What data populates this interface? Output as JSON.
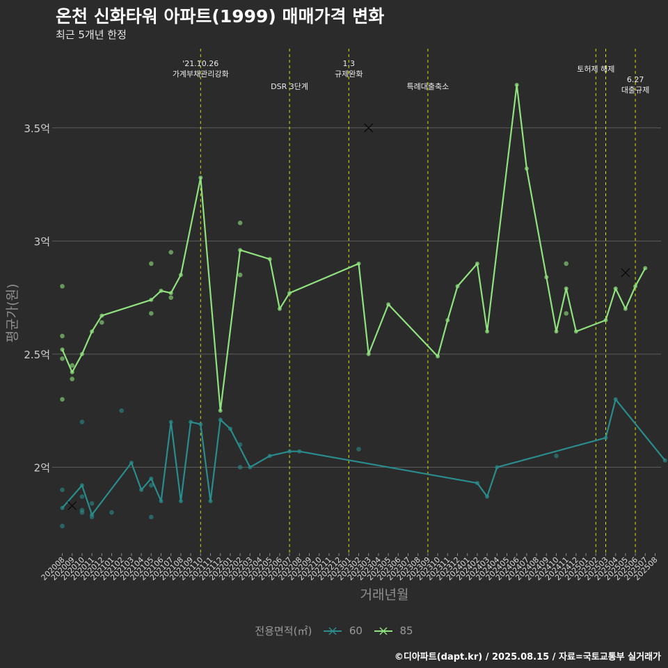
{
  "title": "온천 신화타워 아파트(1999) 매매가격 변화",
  "subtitle": "최근 5개년 한정",
  "caption": "©디아파트(dapt.kr) / 2025.08.15 / 자료=국토교통부 실거래가",
  "legend": {
    "title": "전용면적(㎡)",
    "items": [
      {
        "label": "60",
        "color": "#2a8c8c"
      },
      {
        "label": "85",
        "color": "#90e27f"
      }
    ]
  },
  "chart_data": {
    "type": "line",
    "xlabel": "거래년월",
    "ylabel": "평균가(원)",
    "x_categories": [
      "202008",
      "202009",
      "202010",
      "202011",
      "202012",
      "202101",
      "202102",
      "202103",
      "202104",
      "202105",
      "202106",
      "202107",
      "202108",
      "202109",
      "202110",
      "202111",
      "202112",
      "202201",
      "202202",
      "202203",
      "202204",
      "202205",
      "202206",
      "202207",
      "202208",
      "202209",
      "202210",
      "202211",
      "202212",
      "202301",
      "202302",
      "202303",
      "202304",
      "202305",
      "202306",
      "202307",
      "202308",
      "202309",
      "202310",
      "202311",
      "202312",
      "202401",
      "202402",
      "202403",
      "202404",
      "202405",
      "202406",
      "202407",
      "202408",
      "202409",
      "202410",
      "202411",
      "202412",
      "202501",
      "202502",
      "202503",
      "202504",
      "202505",
      "202506",
      "202507",
      "202508"
    ],
    "y_ticks": [
      {
        "value": 2.0,
        "label": "2억"
      },
      {
        "value": 2.5,
        "label": "2.5억"
      },
      {
        "value": 3.0,
        "label": "3억"
      },
      {
        "value": 3.5,
        "label": "3.5억"
      }
    ],
    "y_range": [
      1.62,
      3.85
    ],
    "unit": "억",
    "series": [
      {
        "name": "60",
        "color": "#2a8c8c",
        "line": [
          [
            "202008",
            1.82
          ],
          [
            "202010",
            1.92
          ],
          [
            "202011",
            1.79
          ],
          [
            "202103",
            2.02
          ],
          [
            "202104",
            1.9
          ],
          [
            "202105",
            1.95
          ],
          [
            "202106",
            1.85
          ],
          [
            "202107",
            2.2
          ],
          [
            "202108",
            1.85
          ],
          [
            "202109",
            2.2
          ],
          [
            "202110",
            2.19
          ],
          [
            "202111",
            1.85
          ],
          [
            "202112",
            2.21
          ],
          [
            "202201",
            2.17
          ],
          [
            "202203",
            2.0
          ],
          [
            "202205",
            2.05
          ],
          [
            "202207",
            2.07
          ],
          [
            "202208",
            2.07
          ],
          [
            "202402",
            1.93
          ],
          [
            "202403",
            1.87
          ],
          [
            "202404",
            2.0
          ],
          [
            "202503",
            2.13
          ],
          [
            "202504",
            2.3
          ],
          [
            "202509",
            2.03
          ]
        ],
        "points": [
          [
            "202008",
            1.9
          ],
          [
            "202008",
            1.74
          ],
          [
            "202010",
            2.2
          ],
          [
            "202010",
            1.87
          ],
          [
            "202010",
            1.81
          ],
          [
            "202010",
            1.8
          ],
          [
            "202011",
            1.84
          ],
          [
            "202011",
            1.78
          ],
          [
            "202101",
            1.8
          ],
          [
            "202102",
            2.25
          ],
          [
            "202105",
            1.92
          ],
          [
            "202105",
            1.78
          ],
          [
            "202202",
            2.1
          ],
          [
            "202202",
            2.0
          ],
          [
            "202302",
            2.08
          ],
          [
            "202410",
            2.05
          ]
        ],
        "mark": [
          "202009",
          1.83
        ]
      },
      {
        "name": "85",
        "color": "#90e27f",
        "line": [
          [
            "202008",
            2.52
          ],
          [
            "202009",
            2.42
          ],
          [
            "202010",
            2.5
          ],
          [
            "202011",
            2.6
          ],
          [
            "202012",
            2.67
          ],
          [
            "202105",
            2.74
          ],
          [
            "202106",
            2.78
          ],
          [
            "202107",
            2.77
          ],
          [
            "202108",
            2.85
          ],
          [
            "202110",
            3.28
          ],
          [
            "202112",
            2.25
          ],
          [
            "202202",
            2.96
          ],
          [
            "202205",
            2.92
          ],
          [
            "202206",
            2.7
          ],
          [
            "202207",
            2.77
          ],
          [
            "202302",
            2.9
          ],
          [
            "202303",
            2.5
          ],
          [
            "202305",
            2.72
          ],
          [
            "202310",
            2.49
          ],
          [
            "202311",
            2.65
          ],
          [
            "202312",
            2.8
          ],
          [
            "202402",
            2.9
          ],
          [
            "202403",
            2.6
          ],
          [
            "202406",
            3.69
          ],
          [
            "202407",
            3.32
          ],
          [
            "202409",
            2.84
          ],
          [
            "202410",
            2.6
          ],
          [
            "202411",
            2.79
          ],
          [
            "202412",
            2.6
          ],
          [
            "202503",
            2.65
          ],
          [
            "202504",
            2.79
          ],
          [
            "202505",
            2.7
          ],
          [
            "202506",
            2.8
          ],
          [
            "202507",
            2.88
          ]
        ],
        "points": [
          [
            "202008",
            2.8
          ],
          [
            "202008",
            2.58
          ],
          [
            "202008",
            2.48
          ],
          [
            "202008",
            2.3
          ],
          [
            "202009",
            2.45
          ],
          [
            "202009",
            2.39
          ],
          [
            "202012",
            2.64
          ],
          [
            "202105",
            2.9
          ],
          [
            "202105",
            2.68
          ],
          [
            "202107",
            2.95
          ],
          [
            "202107",
            2.75
          ],
          [
            "202202",
            3.08
          ],
          [
            "202202",
            2.85
          ],
          [
            "202411",
            2.9
          ],
          [
            "202411",
            2.68
          ]
        ],
        "marks": [
          [
            "202303",
            3.5
          ],
          [
            "202505",
            2.86
          ]
        ]
      }
    ],
    "events": [
      {
        "x": "202110",
        "label_lines": [
          "'21.10.26",
          "가계부채관리강화"
        ]
      },
      {
        "x": "202207",
        "label_lines": [
          "DSR 3단계"
        ]
      },
      {
        "x": "202301",
        "label_lines": [
          "1.3",
          "규제완화"
        ]
      },
      {
        "x": "202309",
        "label_lines": [
          "특례대출축소"
        ]
      },
      {
        "x": "202502",
        "label_lines": [
          "토허제 해제"
        ]
      },
      {
        "x": "202503",
        "label_lines": []
      },
      {
        "x": "202506",
        "label_lines": [
          "6.27",
          "대출규제"
        ]
      }
    ]
  }
}
